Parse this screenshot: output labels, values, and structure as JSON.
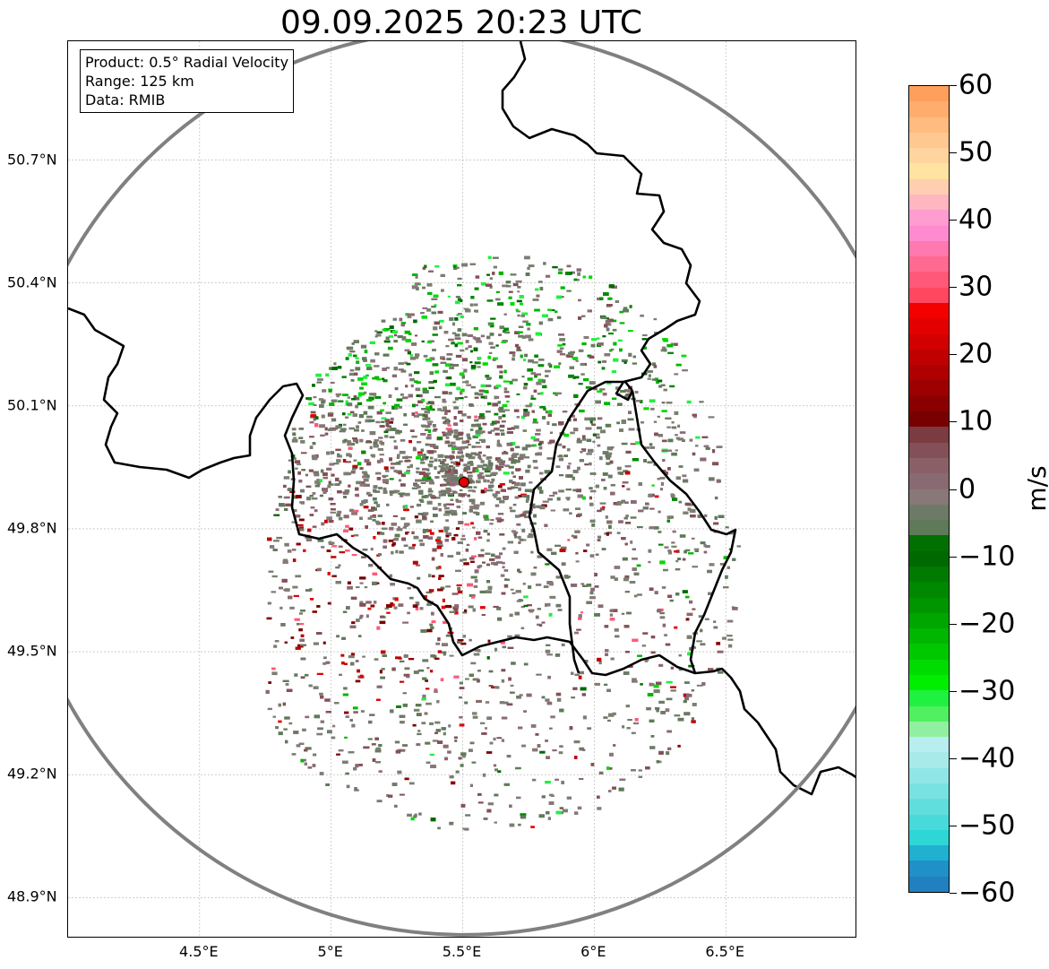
{
  "title": "09.09.2025 20:23 UTC",
  "info": {
    "product": "Product: 0.5° Radial Velocity",
    "range": "Range: 125 km",
    "data": "Data: RMIB"
  },
  "map": {
    "lon_range": [
      4.0,
      7.0
    ],
    "lat_range": [
      48.8,
      50.99
    ],
    "radar_site": {
      "lon": 5.505,
      "lat": 49.914
    },
    "lat_ticks": [
      "50.7°N",
      "50.4°N",
      "50.1°N",
      "49.8°N",
      "49.5°N",
      "49.2°N",
      "48.9°N"
    ],
    "lat_values": [
      50.7,
      50.4,
      50.1,
      49.8,
      49.5,
      49.2,
      48.9
    ],
    "lon_ticks": [
      "4.5°E",
      "5°E",
      "5.5°E",
      "6°E",
      "6.5°E"
    ],
    "lon_values": [
      4.5,
      5.0,
      5.5,
      6.0,
      6.5
    ],
    "range_ring_color": "#808080",
    "border_color": "#000000"
  },
  "colorbar": {
    "label": "m/s",
    "vmin": -60,
    "vmax": 60,
    "tick_labels": [
      "60",
      "50",
      "40",
      "30",
      "20",
      "10",
      "0",
      "−10",
      "−20",
      "−30",
      "−40",
      "−50",
      "−60"
    ],
    "tick_values": [
      60,
      50,
      40,
      30,
      20,
      10,
      0,
      -10,
      -20,
      -30,
      -40,
      -50,
      -60
    ],
    "colors": [
      "#ff9f5c",
      "#ffad6e",
      "#ffbb80",
      "#ffc890",
      "#ffd49e",
      "#ffe3a0",
      "#ffcfb0",
      "#ffb6c0",
      "#ff9cd0",
      "#ff8ad0",
      "#ff78b0",
      "#ff6a90",
      "#ff5878",
      "#ff4860",
      "#f40000",
      "#e40000",
      "#d20000",
      "#c00000",
      "#ae0000",
      "#9c0000",
      "#8a0000",
      "#780000",
      "#7a3c40",
      "#845058",
      "#8a6066",
      "#8a6a72",
      "#887878",
      "#6e7a68",
      "#5e7a58",
      "#007000",
      "#006800",
      "#007a00",
      "#008800",
      "#009600",
      "#00a600",
      "#00b600",
      "#00c800",
      "#00dc00",
      "#00ee00",
      "#20f040",
      "#50f060",
      "#90f0a0",
      "#b8eef0",
      "#a8eaea",
      "#90e6e6",
      "#78e2e2",
      "#60dede",
      "#48dada",
      "#2ed6d6",
      "#20b0d0",
      "#2090c8",
      "#2080c0"
    ]
  }
}
